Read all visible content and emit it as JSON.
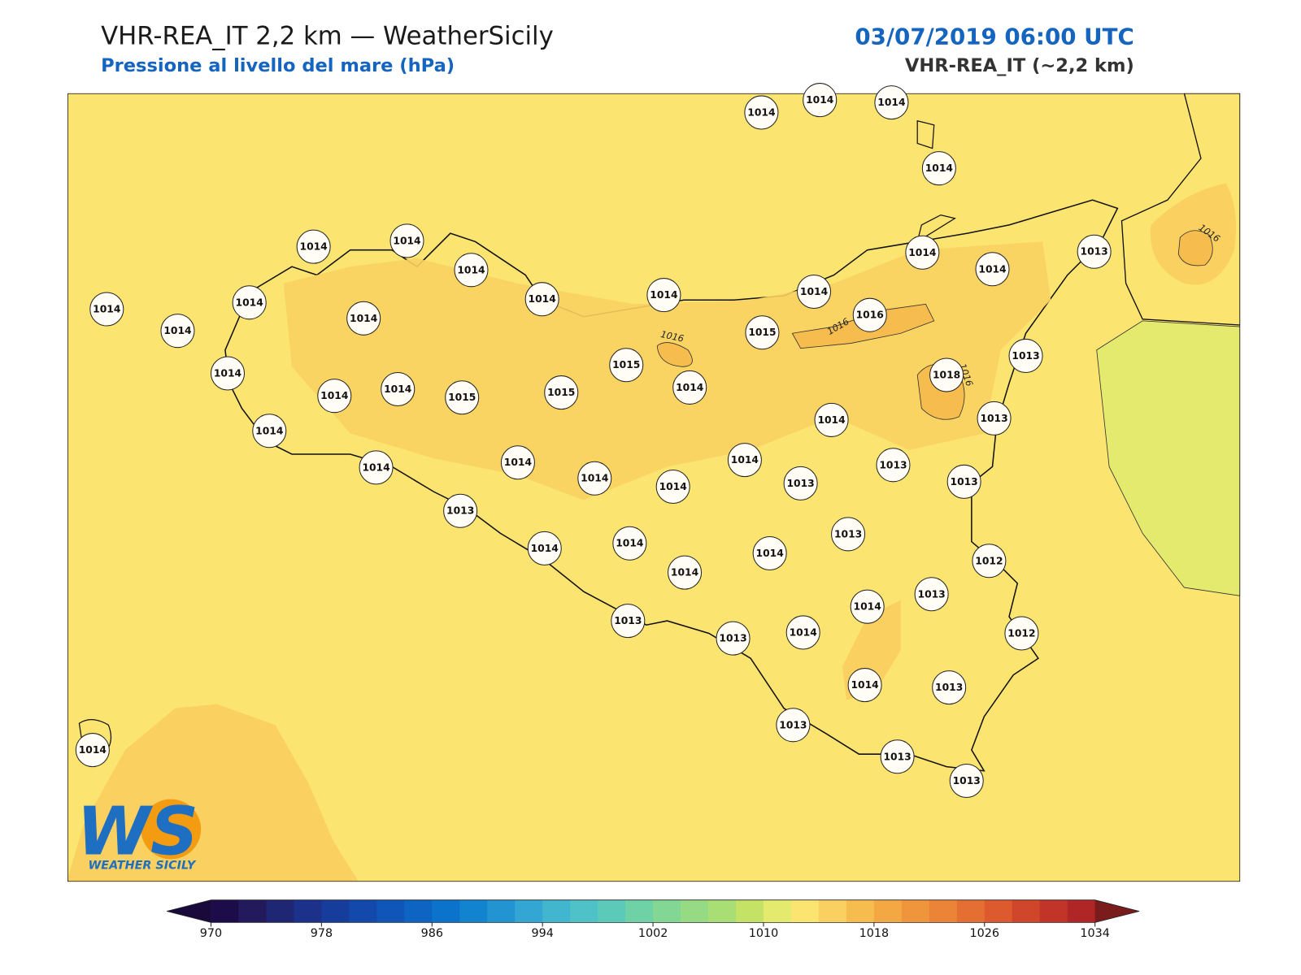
{
  "header": {
    "title": "VHR-REA_IT 2,2 km — WeatherSicily",
    "subtitle": "Pressione al livello del mare (hPa)",
    "datetime": "03/07/2019 06:00 UTC",
    "model": "VHR-REA_IT (~2,2 km)"
  },
  "map": {
    "stations": [
      1014,
      1014,
      1014,
      1014,
      1014,
      1014,
      1014,
      1014,
      1014,
      1014,
      1014,
      1014,
      1013,
      1014,
      1014,
      1014,
      1014,
      1014,
      1014,
      1014,
      1015,
      1015,
      1015,
      1014,
      1015,
      1016,
      1018,
      1013,
      1013,
      1014,
      1014,
      1013,
      1013,
      1013,
      1014,
      1014,
      1014,
      1014,
      1014,
      1013,
      1014,
      1014,
      1014,
      1014,
      1013,
      1012,
      1013,
      1014,
      1012,
      1013,
      1013,
      1014,
      1014,
      1013,
      1013,
      1013,
      1013,
      1014
    ],
    "contour_labels": [
      1016,
      1016,
      1016,
      1016
    ],
    "colorbar": {
      "ticks": [
        970,
        978,
        986,
        994,
        1002,
        1010,
        1018,
        1026,
        1034
      ],
      "colors": [
        "#1d0c4a",
        "#231a5e",
        "#1f2673",
        "#1c3189",
        "#173d9c",
        "#1349ab",
        "#1056b9",
        "#0d64c3",
        "#0b73cb",
        "#1283cf",
        "#2294d2",
        "#33a6d3",
        "#42b6ce",
        "#4ec2c6",
        "#5bcab8",
        "#6ed2a6",
        "#83d795",
        "#96db83",
        "#a8de73",
        "#c4e366",
        "#e3ea6e",
        "#fbe46f",
        "#fad161",
        "#f6bc4d",
        "#f3a843",
        "#ef963d",
        "#ec8438",
        "#e56f32",
        "#dc5a2d",
        "#d0462a",
        "#c23428",
        "#b02526"
      ],
      "under_color": "#1a0a3c",
      "over_color": "#7a1c1c"
    }
  },
  "logo": {
    "mark": "WS",
    "text": "WEATHER SICILY"
  }
}
